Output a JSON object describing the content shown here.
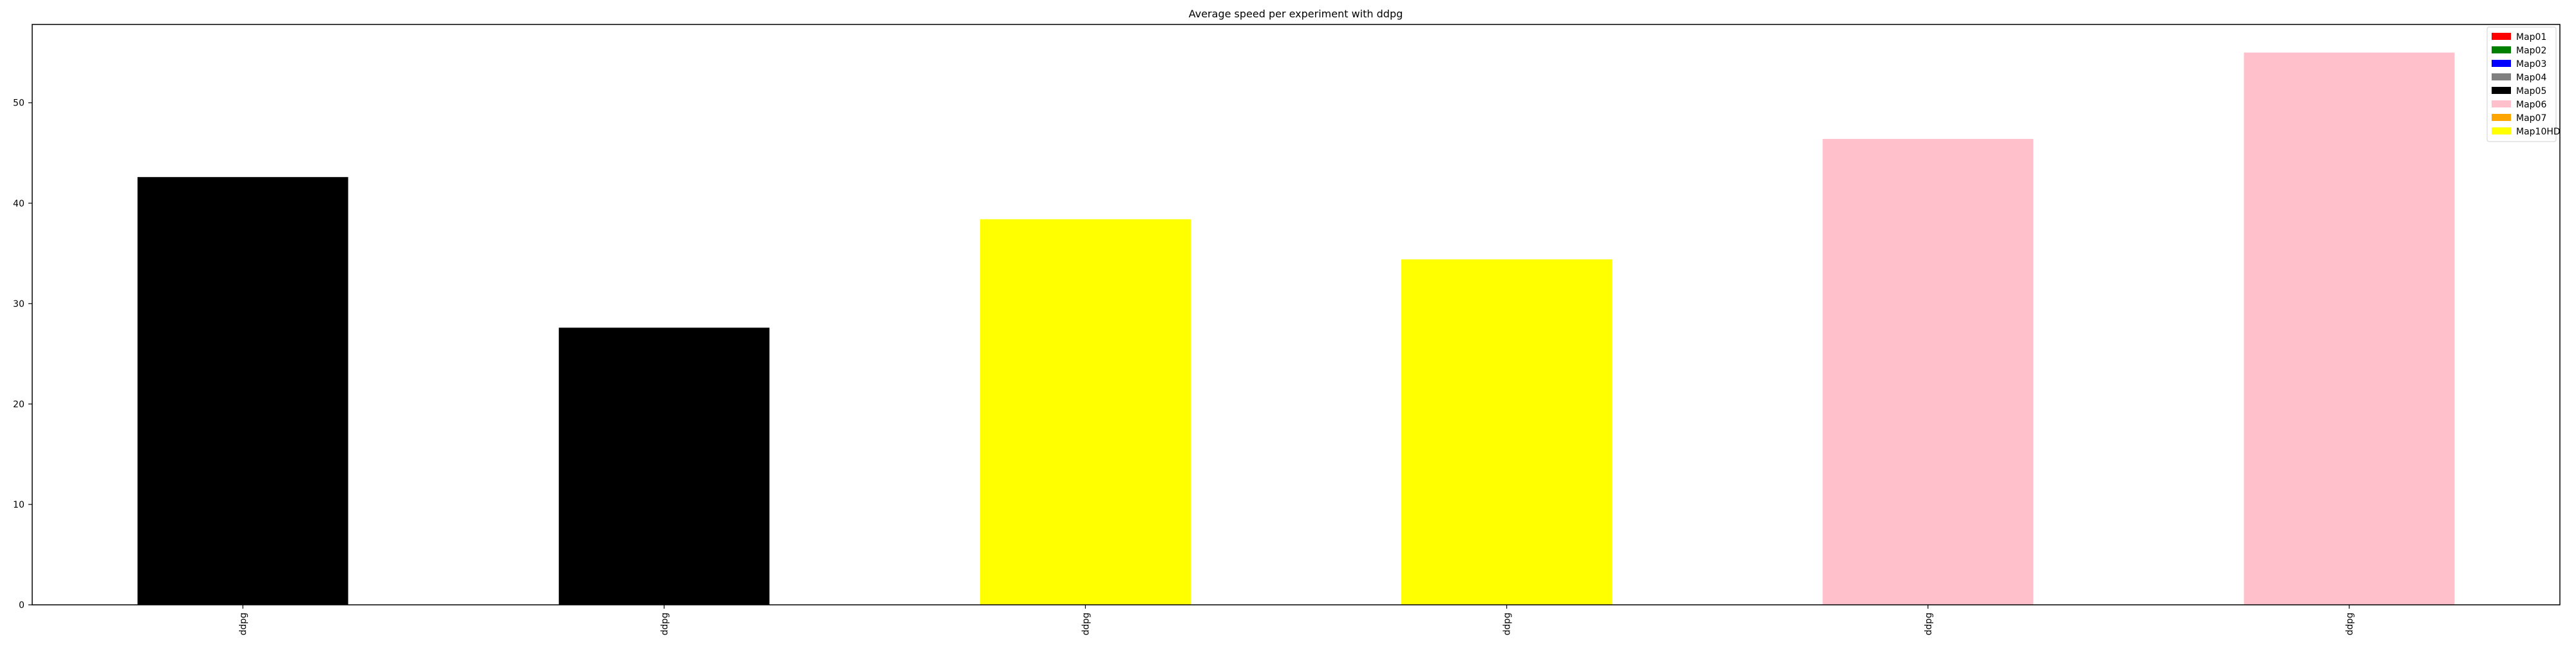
{
  "chart_data": {
    "type": "bar",
    "title": "Average speed per experiment with ddpg",
    "xlabel": "",
    "ylabel": "",
    "categories": [
      "ddpg",
      "ddpg",
      "ddpg",
      "ddpg",
      "ddpg",
      "ddpg"
    ],
    "values": [
      42.6,
      27.6,
      38.4,
      34.4,
      46.4,
      55.0
    ],
    "bar_map": [
      "Map05",
      "Map05",
      "Map10HD",
      "Map10HD",
      "Map06",
      "Map06"
    ],
    "ylim": [
      0,
      57.8
    ],
    "yticks": [
      0,
      10,
      20,
      30,
      40,
      50
    ],
    "grid": false,
    "legend": {
      "placement": "top-right",
      "entries": [
        {
          "label": "Map01",
          "color": "#ff0000"
        },
        {
          "label": "Map02",
          "color": "#008000"
        },
        {
          "label": "Map03",
          "color": "#0000ff"
        },
        {
          "label": "Map04",
          "color": "#808080"
        },
        {
          "label": "Map05",
          "color": "#000000"
        },
        {
          "label": "Map06",
          "color": "#ffc0cb"
        },
        {
          "label": "Map07",
          "color": "#ffa500"
        },
        {
          "label": "Map10HD",
          "color": "#ffff00"
        }
      ]
    }
  }
}
